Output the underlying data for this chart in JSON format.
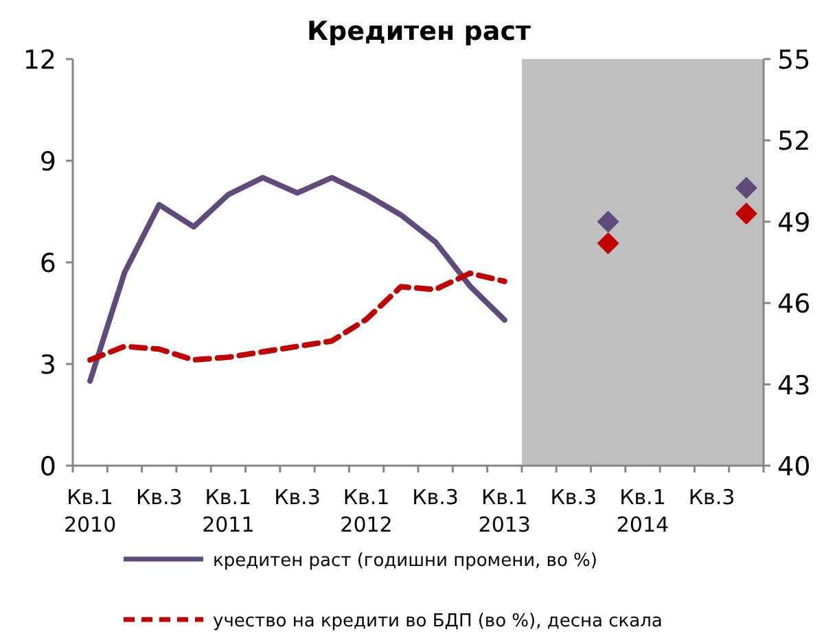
{
  "chart_data": {
    "type": "line",
    "title": "Кредитен раст",
    "categories": [
      "Кв.1\n2010",
      null,
      "Кв.3",
      null,
      "Кв.1\n2011",
      null,
      "Кв.3",
      null,
      "Кв.1\n2012",
      null,
      "Кв.3",
      null,
      "Кв.1\n2013",
      null,
      "Кв.3",
      null,
      "Кв.1\n2014",
      null,
      "Кв.3",
      null
    ],
    "series": [
      {
        "name": "кредитен раст (годишни промени, во %)",
        "color": "#604a7b",
        "line_style": "solid",
        "marker": "none",
        "values": [
          2.5,
          5.7,
          7.7,
          7.05,
          8.0,
          8.5,
          8.05,
          8.5,
          8.0,
          7.4,
          6.6,
          5.3,
          4.3,
          null,
          null,
          null,
          null,
          null,
          null,
          null
        ]
      },
      {
        "name": "учество на кредити во БДП (во %), десна скала",
        "axis": "y2",
        "color": "#c00000",
        "line_style": "dashed",
        "marker": "none",
        "values": [
          43.9,
          44.4,
          44.3,
          43.9,
          44.0,
          44.2,
          44.4,
          44.6,
          45.4,
          46.6,
          46.5,
          47.1,
          46.8,
          null,
          null,
          null,
          null,
          null,
          null,
          null
        ]
      },
      {
        "type": "scatter",
        "color": "#604a7b",
        "marker": "diamond",
        "values": [
          null,
          null,
          null,
          null,
          null,
          null,
          null,
          null,
          null,
          null,
          null,
          null,
          null,
          null,
          null,
          7.2,
          null,
          null,
          null,
          8.2
        ]
      },
      {
        "type": "scatter",
        "axis": "y2",
        "color": "#c00000",
        "marker": "diamond",
        "values": [
          null,
          null,
          null,
          null,
          null,
          null,
          null,
          null,
          null,
          null,
          null,
          null,
          null,
          null,
          null,
          48.2,
          null,
          null,
          null,
          49.3
        ]
      }
    ],
    "ylim": [
      0,
      12
    ],
    "yticks": [
      0,
      3,
      6,
      9,
      12
    ],
    "y2lim": [
      40,
      55
    ],
    "y2ticks": [
      40,
      43,
      46,
      49,
      52,
      55
    ],
    "grid": false,
    "legend": "bottom"
  }
}
